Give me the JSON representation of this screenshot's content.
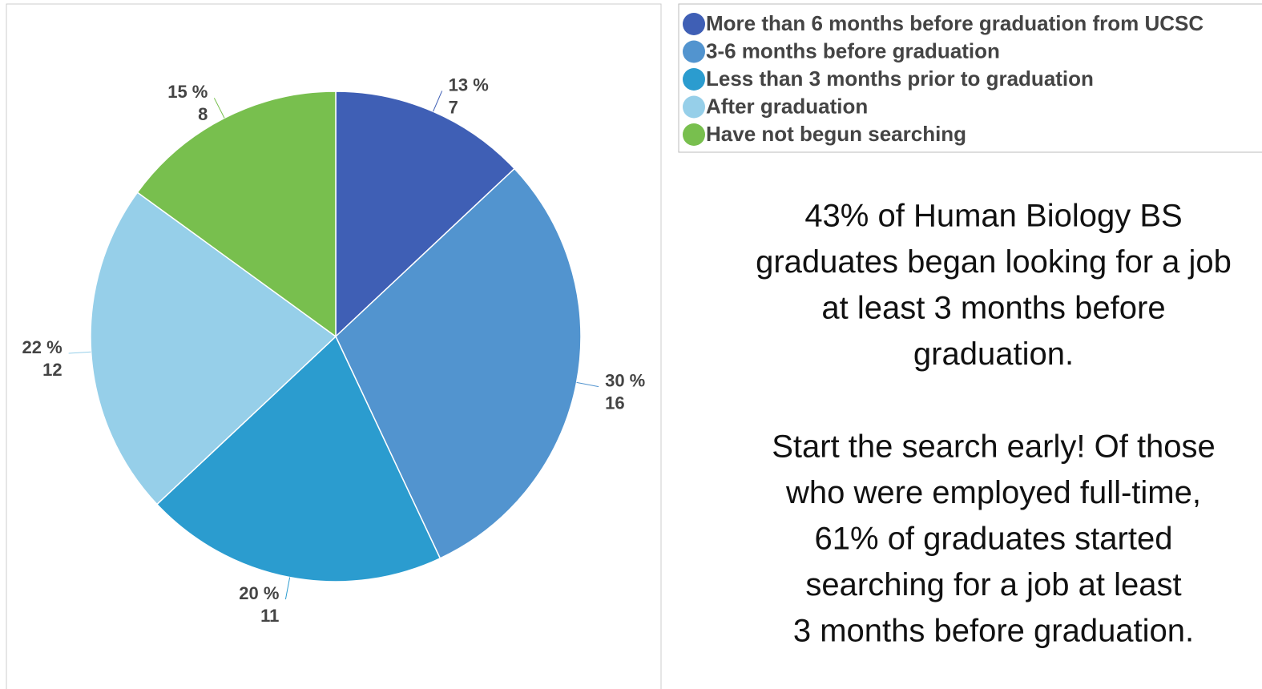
{
  "chart_data": {
    "type": "pie",
    "categories": [
      "More than 6 months before graduation from UCSC",
      "3-6 months before graduation",
      "Less than 3 months prior to graduation",
      "After graduation",
      "Have not begun searching"
    ],
    "values": [
      13,
      30,
      20,
      22,
      15
    ],
    "value_labels": [
      "13 %",
      "30 %",
      "20 %",
      "22 %",
      "15 %"
    ],
    "counts": [
      7,
      16,
      11,
      12,
      8
    ],
    "colors": [
      "#3f5fb5",
      "#5294cf",
      "#2b9ccf",
      "#96cfe9",
      "#78bf4e"
    ],
    "annotations": [
      [
        "43% of Human Biology BS",
        "graduates began looking for a job",
        "at least 3 months before",
        "graduation."
      ],
      [
        "Start the search early! Of those",
        "who were employed full-time,",
        "61% of graduates started",
        "searching for a job at least",
        "3 months before graduation."
      ]
    ]
  }
}
